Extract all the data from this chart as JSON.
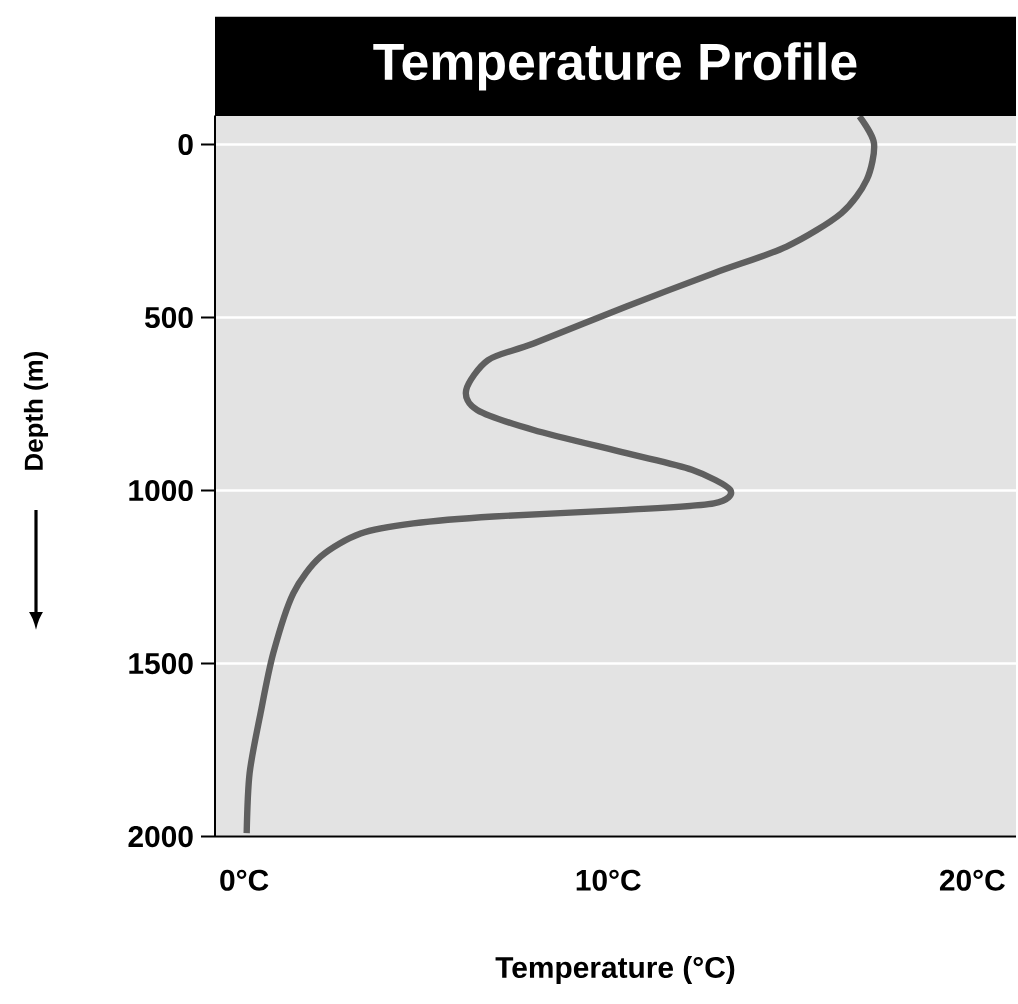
{
  "chart_data": {
    "type": "line",
    "title": "Temperature Profile",
    "xlabel": "Temperature (°C)",
    "ylabel": "Depth (m)",
    "xlim": [
      -0.8,
      21.2
    ],
    "xticks": [
      {
        "value": 0,
        "label": "0°C"
      },
      {
        "value": 10,
        "label": "10°C"
      },
      {
        "value": 20,
        "label": "20°C"
      }
    ],
    "ylim": [
      2000,
      -84
    ],
    "yticks": [
      0,
      500,
      1000,
      1500,
      2000
    ],
    "grid": "y",
    "marker": "none",
    "line_style": "solid",
    "series": [
      {
        "color": "#5f5f5f",
        "x": [
          16.9,
          17.3,
          17.1,
          16.4,
          14.9,
          12.9,
          10.5,
          7.95,
          6.7,
          6.1,
          6.4,
          7.95,
          10.5,
          12.3,
          13.35,
          12.9,
          10.5,
          6.85,
          4.65,
          3.2,
          2.1,
          1.35,
          0.8,
          0.45,
          0.15,
          0.07
        ],
        "values": [
          -81,
          -3,
          102,
          199,
          295,
          372,
          468,
          575,
          623,
          709,
          767,
          825,
          892,
          940,
          998,
          1037,
          1056,
          1075,
          1095,
          1124,
          1191,
          1297,
          1470,
          1644,
          1817,
          1990
        ]
      }
    ]
  }
}
